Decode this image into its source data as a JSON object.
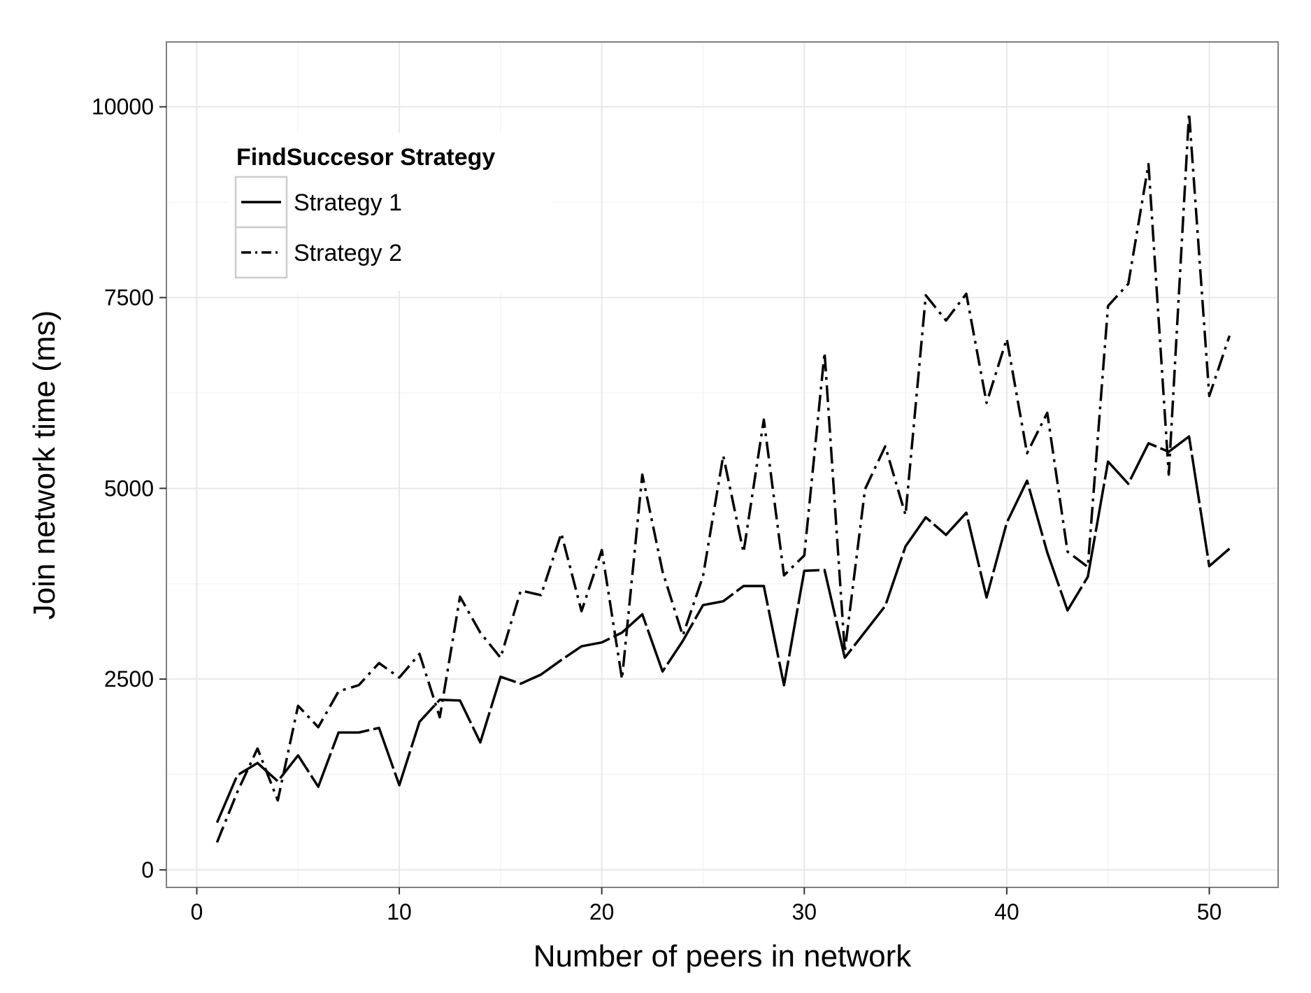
{
  "chart_data": {
    "type": "line",
    "xlabel": "Number of peers in network",
    "ylabel": "Join network time (ms)",
    "xlim": [
      -1.5,
      53.4
    ],
    "ylim": [
      -230,
      10850
    ],
    "x_ticks": [
      0,
      10,
      20,
      30,
      40,
      50
    ],
    "y_ticks": [
      0,
      2500,
      5000,
      7500,
      10000
    ],
    "grid": true,
    "legend": {
      "title": "FindSuccesor Strategy",
      "position": "top-left"
    },
    "x": [
      1,
      2,
      3,
      4,
      5,
      6,
      7,
      8,
      9,
      10,
      11,
      12,
      13,
      14,
      15,
      16,
      17,
      18,
      19,
      20,
      21,
      22,
      23,
      24,
      25,
      26,
      27,
      28,
      29,
      30,
      31,
      32,
      33,
      34,
      35,
      36,
      37,
      38,
      39,
      40,
      41,
      42,
      43,
      44,
      45,
      46,
      47,
      48,
      49,
      50,
      51
    ],
    "series": [
      {
        "name": "Strategy 1",
        "dash": "solid",
        "values": [
          620,
          1240,
          1400,
          1160,
          1500,
          1090,
          1800,
          1800,
          1860,
          1110,
          1940,
          2230,
          2220,
          1670,
          2530,
          2440,
          2560,
          2750,
          2930,
          2980,
          3110,
          3350,
          2600,
          3000,
          3470,
          3520,
          3720,
          3720,
          2420,
          3920,
          3930,
          2780,
          3120,
          3460,
          4240,
          4620,
          4390,
          4680,
          3570,
          4550,
          5100,
          4160,
          3400,
          3840,
          5350,
          5060,
          5590,
          5480,
          5680,
          3980,
          4210
        ]
      },
      {
        "name": "Strategy 2",
        "dash": "dashdot",
        "values": [
          360,
          1020,
          1590,
          910,
          2150,
          1870,
          2340,
          2420,
          2710,
          2520,
          2830,
          2000,
          3580,
          3110,
          2780,
          3660,
          3600,
          4410,
          3390,
          4190,
          2500,
          5180,
          3910,
          3070,
          3850,
          5430,
          4160,
          5900,
          3860,
          4120,
          6780,
          2860,
          4990,
          5550,
          4650,
          7530,
          7200,
          7550,
          6120,
          6960,
          5460,
          5990,
          4170,
          3970,
          7390,
          7680,
          9250,
          5180,
          9920,
          6210,
          7000
        ]
      }
    ]
  }
}
